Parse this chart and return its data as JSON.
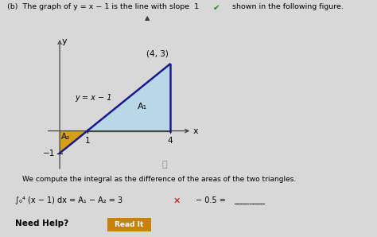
{
  "fig_bg": "#d8d8d8",
  "ax_bg": "#d8d8d8",
  "A1_color": "#b8d8e8",
  "A2_color": "#d4a017",
  "line_color": "#1a1a8c",
  "axis_color": "#444444",
  "triangle_outline_color": "#1a1a8c",
  "xlim": [
    -0.8,
    5.5
  ],
  "ylim": [
    -2.0,
    4.5
  ],
  "title_line1": "(b)  The graph of y = x − 1 is the line with slope  1",
  "checkmark": "✔",
  "checkmark_color": "#228B22",
  "title_line2": "shown in the following figure.",
  "eq_label": "y = x − 1",
  "point_label": "(4, 3)",
  "A1_label": "A₁",
  "A2_label": "A₂",
  "x_label": "x",
  "y_label": "y",
  "tick_1": "1",
  "tick_4": "4",
  "tick_neg1": "−1",
  "bottom_text": "We compute the integral as the difference of the areas of the two triangles.",
  "integral_lhs": "∫₀⁴ (x − 1) dx = A₁ − A₂ = 3",
  "xmark": "✕",
  "xmark_color": "#cc0000",
  "integral_rhs": "− 0.5 =",
  "underline_text": "________",
  "need_help": "Need Help?",
  "read_it": "Read It",
  "read_it_bg": "#c8820a",
  "read_it_fg": "#ffffff",
  "cursor_color": "#333333"
}
